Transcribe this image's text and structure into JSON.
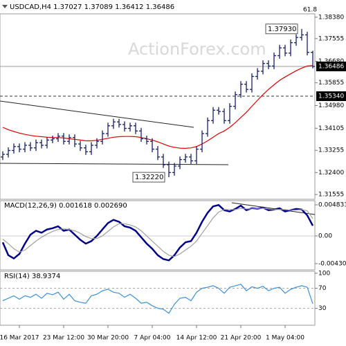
{
  "chart_data": [
    {
      "type": "ohlc",
      "title": "USDCAD,H4  1.37027 1.37089 1.36412 1.36486",
      "watermark": "ActionForex.com",
      "fib_level_label": "61.8",
      "color": "#14206e",
      "categories": [
        null,
        null,
        null,
        "16 Mar 2017",
        null,
        null,
        null,
        null,
        null,
        null,
        null,
        "23 Mar 12:00",
        null,
        null,
        null,
        null,
        null,
        null,
        null,
        "30 Mar 20:00",
        null,
        null,
        null,
        null,
        null,
        null,
        null,
        "7 Apr 04:00",
        null,
        null,
        null,
        null,
        null,
        null,
        null,
        "14 Apr 12:00",
        null,
        null,
        null,
        null,
        null,
        null,
        null,
        "21 Apr 20:00",
        null,
        null,
        null,
        null,
        null,
        null,
        null,
        "1 May 04:00",
        null,
        null,
        null,
        null,
        null
      ],
      "open": [
        1.33,
        1.331,
        1.3325,
        1.334,
        1.333,
        1.3345,
        1.3335,
        1.3355,
        1.3345,
        1.3365,
        1.337,
        1.338,
        1.336,
        1.3375,
        1.335,
        1.3335,
        1.332,
        1.3345,
        1.336,
        1.339,
        1.342,
        1.3435,
        1.3425,
        1.341,
        1.342,
        1.34,
        1.337,
        1.336,
        1.333,
        1.33,
        1.327,
        1.324,
        1.3265,
        1.329,
        1.33,
        1.3285,
        1.333,
        1.339,
        1.344,
        1.348,
        1.3475,
        1.344,
        1.3495,
        1.354,
        1.358,
        1.356,
        1.361,
        1.363,
        1.366,
        1.365,
        1.369,
        1.372,
        1.37,
        1.374,
        1.376,
        1.377,
        1.37027
      ],
      "high": [
        1.3322,
        1.3337,
        1.3352,
        1.3352,
        1.3357,
        1.3357,
        1.3367,
        1.3367,
        1.3377,
        1.3382,
        1.3392,
        1.3392,
        1.3387,
        1.3387,
        1.3362,
        1.3347,
        1.3357,
        1.3372,
        1.3402,
        1.3432,
        1.3447,
        1.3447,
        1.3437,
        1.3432,
        1.3432,
        1.3412,
        1.3382,
        1.3372,
        1.3342,
        1.3312,
        1.3282,
        1.3277,
        1.3302,
        1.3312,
        1.3312,
        1.3342,
        1.3402,
        1.3452,
        1.3492,
        1.3492,
        1.3487,
        1.3507,
        1.3552,
        1.3592,
        1.3592,
        1.3622,
        1.3642,
        1.3672,
        1.3672,
        1.3702,
        1.3732,
        1.3732,
        1.3752,
        1.3772,
        1.3793,
        1.3782,
        1.37089
      ],
      "low": [
        1.3288,
        1.3298,
        1.3313,
        1.3318,
        1.3318,
        1.3323,
        1.3323,
        1.3333,
        1.3333,
        1.3353,
        1.3358,
        1.3348,
        1.3348,
        1.3338,
        1.3323,
        1.3308,
        1.3308,
        1.3333,
        1.3348,
        1.3378,
        1.3408,
        1.3413,
        1.3398,
        1.3398,
        1.3388,
        1.3358,
        1.3348,
        1.3318,
        1.3288,
        1.3258,
        1.3222,
        1.3228,
        1.3253,
        1.3278,
        1.3273,
        1.3273,
        1.3318,
        1.3378,
        1.3428,
        1.3463,
        1.3428,
        1.3428,
        1.3483,
        1.3528,
        1.3548,
        1.3548,
        1.3598,
        1.3618,
        1.3638,
        1.3638,
        1.3678,
        1.3688,
        1.3688,
        1.3728,
        1.3748,
        1.3691,
        1.36412
      ],
      "close": [
        1.331,
        1.3325,
        1.334,
        1.333,
        1.3345,
        1.3335,
        1.3355,
        1.3345,
        1.3365,
        1.337,
        1.338,
        1.336,
        1.3375,
        1.335,
        1.3335,
        1.332,
        1.3345,
        1.336,
        1.339,
        1.342,
        1.3435,
        1.3425,
        1.341,
        1.342,
        1.34,
        1.337,
        1.336,
        1.333,
        1.33,
        1.327,
        1.324,
        1.3265,
        1.329,
        1.33,
        1.3285,
        1.333,
        1.339,
        1.344,
        1.348,
        1.3475,
        1.344,
        1.3495,
        1.354,
        1.358,
        1.356,
        1.361,
        1.363,
        1.366,
        1.365,
        1.369,
        1.372,
        1.37,
        1.374,
        1.376,
        1.377,
        1.37027,
        1.36486
      ],
      "series": [
        {
          "color": "#e00000",
          "values": [
            1.3414,
            1.3405,
            1.3398,
            1.3392,
            1.3387,
            1.3383,
            1.338,
            1.3378,
            1.3376,
            1.3375,
            1.3375,
            1.3373,
            1.337,
            1.3368,
            1.3365,
            1.3362,
            1.3362,
            1.3364,
            1.3368,
            1.3372,
            1.3376,
            1.3378,
            1.3379,
            1.3379,
            1.3378,
            1.3375,
            1.337,
            1.3365,
            1.3358,
            1.335,
            1.3342,
            1.3337,
            1.3334,
            1.3333,
            1.3335,
            1.334,
            1.335,
            1.3362,
            1.3376,
            1.339,
            1.34,
            1.3414,
            1.3432,
            1.3452,
            1.3472,
            1.3495,
            1.3518,
            1.354,
            1.356,
            1.3578,
            1.3595,
            1.3608,
            1.362,
            1.3632,
            1.3642,
            1.365,
            1.3652
          ]
        }
      ],
      "ylim": [
        1.3137,
        1.3851
      ],
      "yticks": [
        {
          "value": 1.3838,
          "label": "1.38380"
        },
        1.37555,
        {
          "value": 1.3668,
          "label": "1.36680"
        },
        1.35855,
        {
          "value": 1.3498,
          "label": "1.34980"
        },
        1.34105,
        1.33255,
        {
          "value": 1.324,
          "label": "1.32400"
        },
        1.31555
      ],
      "last_price": 1.36486,
      "levels": [
        {
          "value": 1.3534,
          "label": "1.35340"
        }
      ],
      "annotations": [
        {
          "value": 1.3793,
          "label": "1.37930"
        },
        {
          "value": 1.3222,
          "label": "1.32220"
        }
      ]
    },
    {
      "type": "line",
      "title": "MACD(12,26,9) 0.001618 0.002690",
      "series": [
        {
          "color": "#00008c",
          "values": [
            -0.001,
            -0.003,
            -0.0035,
            -0.0028,
            -0.0012,
            0.0002,
            0.0008,
            0.0005,
            0.001,
            0.0012,
            0.0015,
            0.0008,
            0.001,
            0.0002,
            -0.0006,
            -0.0012,
            -0.0008,
            0.0,
            0.001,
            0.002,
            0.0025,
            0.0022,
            0.0015,
            0.0013,
            0.0008,
            -0.0002,
            -0.0012,
            -0.002,
            -0.003,
            -0.0036,
            -0.0038,
            -0.003,
            -0.0018,
            -0.001,
            -0.0008,
            0.0005,
            0.0022,
            0.0036,
            0.0046,
            0.0048,
            0.004,
            0.0038,
            0.0042,
            0.0047,
            0.004,
            0.0043,
            0.0042,
            0.0044,
            0.004,
            0.0041,
            0.0043,
            0.0038,
            0.004,
            0.0042,
            0.0041,
            0.0032,
            0.0016
          ]
        },
        {
          "color": "#a0a0a0",
          "values": [
            -0.0005,
            -0.0012,
            -0.002,
            -0.0025,
            -0.0022,
            -0.0015,
            -0.0008,
            -0.0002,
            0.0003,
            0.0007,
            0.001,
            0.0011,
            0.001,
            0.0008,
            0.0004,
            -0.0001,
            -0.0004,
            -0.0004,
            0.0,
            0.0007,
            0.0014,
            0.0019,
            0.0019,
            0.0017,
            0.0014,
            0.0008,
            0.0,
            -0.0008,
            -0.0016,
            -0.0024,
            -0.003,
            -0.0032,
            -0.0028,
            -0.0022,
            -0.0016,
            -0.0008,
            0.0004,
            0.0016,
            0.0028,
            0.0037,
            0.0041,
            0.0041,
            0.0041,
            0.0043,
            0.0042,
            0.0042,
            0.0042,
            0.0043,
            0.0042,
            0.0041,
            0.0041,
            0.0041,
            0.004,
            0.004,
            0.0041,
            0.0039,
            0.0027
          ]
        }
      ],
      "ylim": [
        -0.005275,
        0.005478
      ],
      "yticks": [
        0.004833,
        {
          "value": 0,
          "label": "0.00"
        },
        -0.004307
      ]
    },
    {
      "type": "line",
      "title": "RSI(14) 38.9374",
      "series": [
        {
          "color": "#3a8fd8",
          "values": [
            45,
            50,
            55,
            48,
            55,
            52,
            58,
            50,
            60,
            57,
            62,
            48,
            58,
            45,
            42,
            40,
            55,
            58,
            65,
            68,
            62,
            60,
            52,
            58,
            50,
            40,
            42,
            35,
            30,
            28,
            20,
            38,
            50,
            52,
            45,
            62,
            70,
            72,
            75,
            70,
            60,
            72,
            75,
            78,
            65,
            73,
            70,
            74,
            65,
            70,
            72,
            60,
            68,
            72,
            75,
            72,
            39
          ]
        }
      ],
      "ylim": [
        -4,
        104
      ],
      "yticks": [
        100,
        70,
        30
      ],
      "dashed_levels": [
        70,
        30
      ]
    }
  ]
}
